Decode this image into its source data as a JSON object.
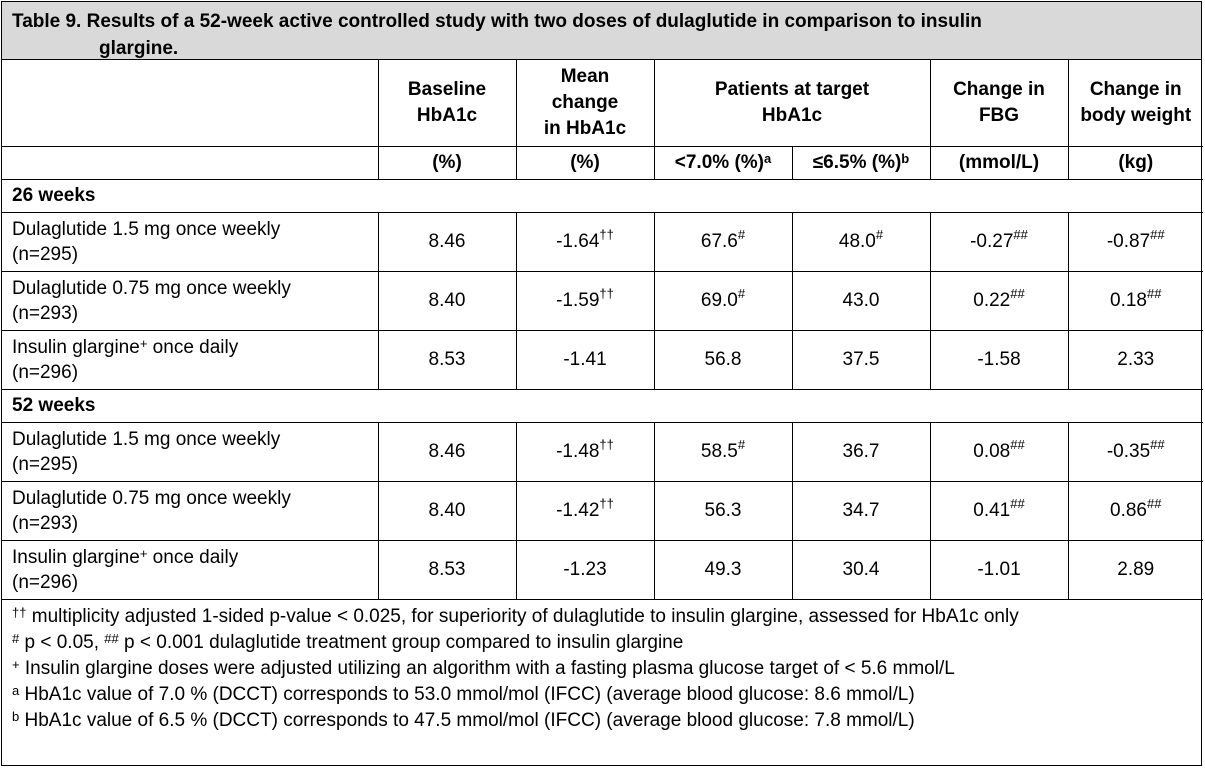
{
  "title": {
    "line1": "Table 9. Results of a 52-week active controlled study with two doses of dulaglutide in comparison to insulin",
    "line2": "glargine."
  },
  "columns": {
    "baseline": [
      "Baseline",
      "HbA1c"
    ],
    "mean_change": [
      "Mean",
      "change",
      "in HbA1c"
    ],
    "patients": [
      "Patients at target",
      "HbA1c"
    ],
    "fbg": [
      "Change in",
      "FBG"
    ],
    "weight": [
      "Change in",
      "body weight"
    ]
  },
  "units": {
    "baseline": "(%)",
    "mean_change": "(%)",
    "lt70": "<7.0% (%)",
    "lt70_sup": "a",
    "le65": "≤6.5% (%)",
    "le65_sup": "b",
    "fbg": "(mmol/L)",
    "weight": "(kg)"
  },
  "sections": [
    {
      "label": "26 weeks",
      "rows": [
        {
          "name": "Dulaglutide 1.5 mg once weekly",
          "n": "(n=295)",
          "name_sup": "",
          "cells": [
            {
              "v": "8.46",
              "s": ""
            },
            {
              "v": "-1.64",
              "s": "††"
            },
            {
              "v": "67.6",
              "s": "#"
            },
            {
              "v": "48.0",
              "s": "#"
            },
            {
              "v": "-0.27",
              "s": "##"
            },
            {
              "v": "-0.87",
              "s": "##"
            }
          ]
        },
        {
          "name": "Dulaglutide 0.75 mg once weekly",
          "n": "(n=293)",
          "name_sup": "",
          "cells": [
            {
              "v": "8.40",
              "s": ""
            },
            {
              "v": "-1.59",
              "s": "††"
            },
            {
              "v": "69.0",
              "s": "#"
            },
            {
              "v": "43.0",
              "s": ""
            },
            {
              "v": "0.22",
              "s": "##"
            },
            {
              "v": "0.18",
              "s": "##"
            }
          ]
        },
        {
          "name": "Insulin glargine",
          "name_sup": "+",
          "name_suffix": " once daily",
          "n": "(n=296)",
          "cells": [
            {
              "v": "8.53",
              "s": ""
            },
            {
              "v": "-1.41",
              "s": ""
            },
            {
              "v": "56.8",
              "s": ""
            },
            {
              "v": "37.5",
              "s": ""
            },
            {
              "v": "-1.58",
              "s": ""
            },
            {
              "v": "2.33",
              "s": ""
            }
          ]
        }
      ]
    },
    {
      "label": "52 weeks",
      "rows": [
        {
          "name": "Dulaglutide 1.5 mg once weekly",
          "n": "(n=295)",
          "name_sup": "",
          "cells": [
            {
              "v": "8.46",
              "s": ""
            },
            {
              "v": "-1.48",
              "s": "††"
            },
            {
              "v": "58.5",
              "s": "#"
            },
            {
              "v": "36.7",
              "s": ""
            },
            {
              "v": "0.08",
              "s": "##"
            },
            {
              "v": "-0.35",
              "s": "##"
            }
          ]
        },
        {
          "name": "Dulaglutide 0.75 mg once weekly",
          "n": "(n=293)",
          "name_sup": "",
          "cells": [
            {
              "v": "8.40",
              "s": ""
            },
            {
              "v": "-1.42",
              "s": "††"
            },
            {
              "v": "56.3",
              "s": ""
            },
            {
              "v": "34.7",
              "s": ""
            },
            {
              "v": "0.41",
              "s": "##"
            },
            {
              "v": "0.86",
              "s": "##"
            }
          ]
        },
        {
          "name": "Insulin glargine",
          "name_sup": "+",
          "name_suffix": " once daily",
          "n": "(n=296)",
          "cells": [
            {
              "v": "8.53",
              "s": ""
            },
            {
              "v": "-1.23",
              "s": ""
            },
            {
              "v": "49.3",
              "s": ""
            },
            {
              "v": "30.4",
              "s": ""
            },
            {
              "v": "-1.01",
              "s": ""
            },
            {
              "v": "2.89",
              "s": ""
            }
          ]
        }
      ]
    }
  ],
  "notes": {
    "n1_sup": "††",
    "n1": " multiplicity adjusted 1-sided p-value < 0.025, for superiority of dulaglutide to insulin glargine, assessed for HbA1c only",
    "n2_sup1": "#",
    "n2_a": " p < 0.05, ",
    "n2_sup2": "##",
    "n2_b": " p < 0.001 dulaglutide treatment group compared to insulin glargine",
    "n3_sup": "+",
    "n3": " Insulin glargine doses were adjusted utilizing an algorithm with a fasting plasma glucose target of < 5.6 mmol/L",
    "n4_sup": "a",
    "n4": " HbA1c value of 7.0 % (DCCT) corresponds to 53.0 mmol/mol (IFCC) (average blood glucose: 8.6 mmol/L)",
    "n5_sup": "b",
    "n5": " HbA1c value of 6.5 % (DCCT) corresponds to 47.5 mmol/mol (IFCC) (average blood glucose: 7.8 mmol/L)"
  }
}
